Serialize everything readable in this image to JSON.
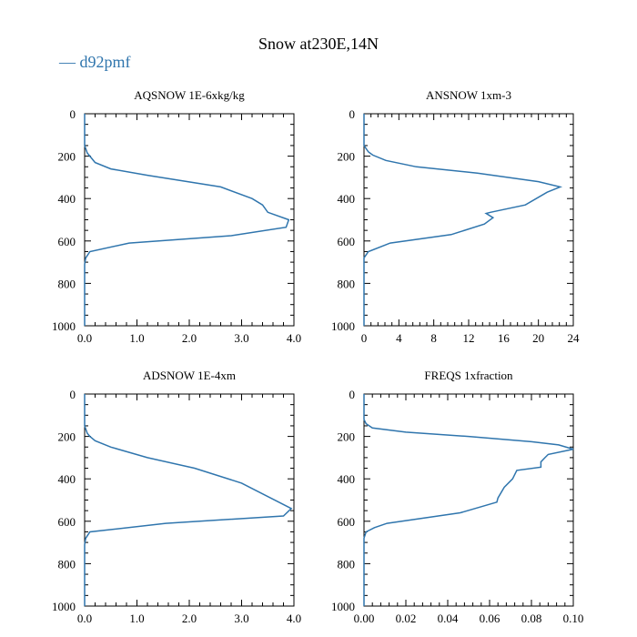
{
  "title": "Snow at230E,14N",
  "legend": {
    "label": "d92pmf",
    "color": "#2f75ad",
    "placement": "top-left"
  },
  "chart_data": [
    {
      "type": "line",
      "title": "AQSNOW  1E-6xkg/kg",
      "xlim": [
        0,
        4.0
      ],
      "ylim": [
        1000,
        0
      ],
      "xticks": [
        0,
        1,
        2,
        3,
        4
      ],
      "xtick_labels": [
        "0.0",
        "1.0",
        "2.0",
        "3.0",
        "4.0"
      ],
      "yticks": [
        0,
        200,
        400,
        600,
        800,
        1000
      ],
      "ytick_labels": [
        "0",
        "200",
        "400",
        "600",
        "800",
        "1000"
      ],
      "series": [
        {
          "name": "d92pmf",
          "x": [
            0,
            0,
            0.05,
            0.1,
            0.2,
            0.5,
            1.2,
            2.6,
            3.2,
            3.4,
            3.5,
            3.9,
            3.85,
            2.8,
            0.85,
            0.1,
            0.02,
            0,
            0
          ],
          "y": [
            0,
            150,
            185,
            200,
            230,
            260,
            290,
            345,
            400,
            430,
            465,
            500,
            535,
            575,
            610,
            650,
            680,
            710,
            1000
          ]
        }
      ]
    },
    {
      "type": "line",
      "title": "ANSNOW  1xm-3",
      "xlim": [
        0,
        24
      ],
      "ylim": [
        1000,
        0
      ],
      "xticks": [
        0,
        4,
        8,
        12,
        16,
        20,
        24
      ],
      "xtick_labels": [
        "0",
        "4",
        "8",
        "12",
        "16",
        "20",
        "24"
      ],
      "yticks": [
        0,
        200,
        400,
        600,
        800,
        1000
      ],
      "ytick_labels": [
        "0",
        "200",
        "400",
        "600",
        "800",
        "1000"
      ],
      "series": [
        {
          "name": "d92pmf",
          "x": [
            0,
            0,
            0.5,
            1,
            2.5,
            6,
            13,
            20,
            22.5,
            21,
            18.5,
            14.5,
            14,
            14.8,
            13.8,
            10,
            3,
            0.5,
            0,
            0
          ],
          "y": [
            0,
            150,
            180,
            195,
            220,
            250,
            280,
            320,
            345,
            370,
            430,
            465,
            470,
            490,
            520,
            570,
            610,
            650,
            680,
            1000
          ]
        }
      ]
    },
    {
      "type": "line",
      "title": "ADSNOW  1E-4xm",
      "xlim": [
        0,
        4.0
      ],
      "ylim": [
        1000,
        0
      ],
      "xticks": [
        0,
        1,
        2,
        3,
        4
      ],
      "xtick_labels": [
        "0.0",
        "1.0",
        "2.0",
        "3.0",
        "4.0"
      ],
      "yticks": [
        0,
        200,
        400,
        600,
        800,
        1000
      ],
      "ytick_labels": [
        "0",
        "200",
        "400",
        "600",
        "800",
        "1000"
      ],
      "series": [
        {
          "name": "d92pmf",
          "x": [
            0,
            0,
            0.05,
            0.1,
            0.2,
            0.5,
            1.2,
            2.1,
            3.0,
            3.95,
            3.8,
            1.55,
            0.1,
            0.02,
            0,
            0
          ],
          "y": [
            0,
            150,
            185,
            200,
            220,
            250,
            300,
            350,
            420,
            540,
            575,
            610,
            650,
            680,
            710,
            1000
          ]
        }
      ]
    },
    {
      "type": "line",
      "title": "FREQS  1xfraction",
      "xlim": [
        0,
        0.1
      ],
      "ylim": [
        1000,
        0
      ],
      "xticks": [
        0,
        0.02,
        0.04,
        0.06,
        0.08,
        0.1
      ],
      "xtick_labels": [
        "0.00",
        "0.02",
        "0.04",
        "0.06",
        "0.08",
        "0.10"
      ],
      "yticks": [
        0,
        200,
        400,
        600,
        800,
        1000
      ],
      "ytick_labels": [
        "0",
        "200",
        "400",
        "600",
        "800",
        "1000"
      ],
      "series": [
        {
          "name": "d92pmf",
          "x": [
            0,
            0,
            0.001,
            0.004,
            0.02,
            0.05,
            0.08,
            0.093,
            0.1,
            0.088,
            0.0865,
            0.0845,
            0.0845,
            0.073,
            0.071,
            0.067,
            0.064,
            0.0635,
            0.046,
            0.011,
            0.005,
            0.001,
            0,
            0
          ],
          "y": [
            0,
            120,
            140,
            160,
            180,
            200,
            225,
            240,
            260,
            285,
            300,
            320,
            345,
            360,
            400,
            440,
            490,
            510,
            560,
            610,
            630,
            650,
            680,
            1000
          ]
        }
      ]
    }
  ]
}
